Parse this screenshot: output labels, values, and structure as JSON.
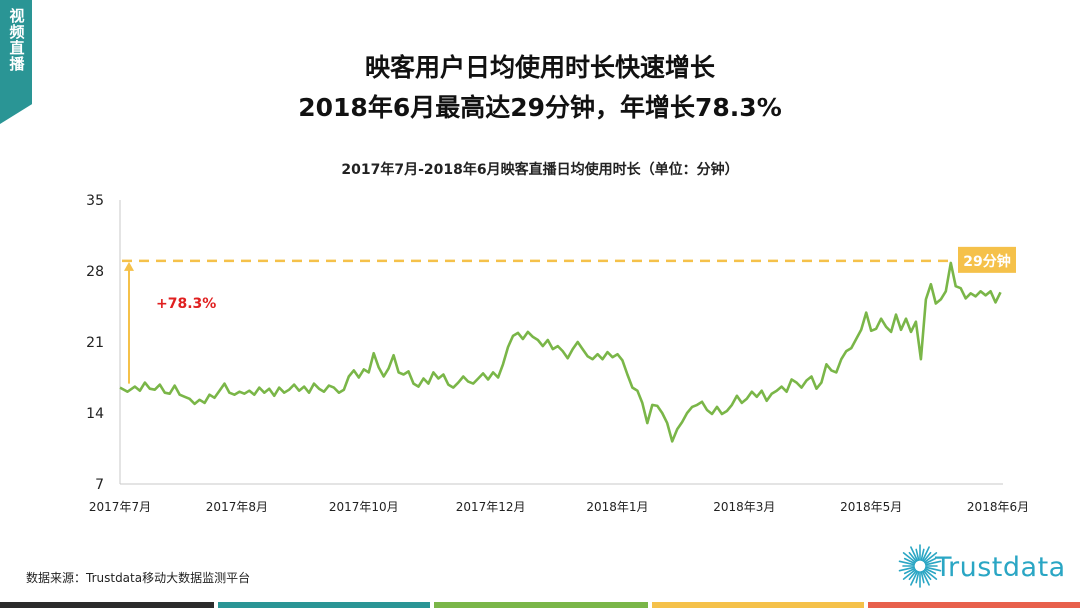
{
  "sidebar": {
    "label": "视频直播"
  },
  "header": {
    "title_line1": "映客用户日均使用时长快速增长",
    "title_line2": "2018年6月最高达29分钟，年增长78.3%"
  },
  "colors": {
    "line": "#7ab648",
    "annotation": "#f5c14a",
    "growth_text": "#e02020",
    "sidebar": "#2a9595",
    "logo": "#2aa6c4",
    "footer": [
      "#2b2b2b",
      "#2a9595",
      "#7ab648",
      "#f5c14a",
      "#e8604c"
    ]
  },
  "chart_data": {
    "type": "line",
    "title": "2017年7月-2018年6月映客直播日均使用时长（单位：分钟）",
    "yticks": [
      7,
      14,
      21,
      28,
      35
    ],
    "ylim": [
      7,
      35
    ],
    "xtick_labels": [
      "2017年7月",
      "2017年8月",
      "2017年10月",
      "2017年12月",
      "2018年1月",
      "2018年3月",
      "2018年5月",
      "2018年6月"
    ],
    "x_range_days": [
      0,
      355
    ],
    "xtick_days": [
      0,
      47,
      98,
      149,
      200,
      251,
      302,
      353
    ],
    "grid": false,
    "series": [
      {
        "points": [
          [
            0,
            16.5
          ],
          [
            3,
            16.1
          ],
          [
            6,
            16.6
          ],
          [
            8,
            16.2
          ],
          [
            10,
            17.0
          ],
          [
            12,
            16.4
          ],
          [
            14,
            16.3
          ],
          [
            16,
            16.8
          ],
          [
            18,
            16.0
          ],
          [
            20,
            15.9
          ],
          [
            22,
            16.7
          ],
          [
            24,
            15.8
          ],
          [
            26,
            15.6
          ],
          [
            28,
            15.4
          ],
          [
            30,
            14.9
          ],
          [
            32,
            15.3
          ],
          [
            34,
            15.0
          ],
          [
            36,
            15.8
          ],
          [
            38,
            15.5
          ],
          [
            40,
            16.2
          ],
          [
            42,
            16.9
          ],
          [
            44,
            16.0
          ],
          [
            46,
            15.8
          ],
          [
            48,
            16.1
          ],
          [
            50,
            15.9
          ],
          [
            52,
            16.2
          ],
          [
            54,
            15.8
          ],
          [
            56,
            16.5
          ],
          [
            58,
            16.0
          ],
          [
            60,
            16.4
          ],
          [
            62,
            15.7
          ],
          [
            64,
            16.5
          ],
          [
            66,
            16.0
          ],
          [
            68,
            16.3
          ],
          [
            70,
            16.8
          ],
          [
            72,
            16.2
          ],
          [
            74,
            16.6
          ],
          [
            76,
            16.0
          ],
          [
            78,
            16.9
          ],
          [
            80,
            16.4
          ],
          [
            82,
            16.1
          ],
          [
            84,
            16.7
          ],
          [
            86,
            16.5
          ],
          [
            88,
            16.0
          ],
          [
            90,
            16.3
          ],
          [
            92,
            17.6
          ],
          [
            94,
            18.2
          ],
          [
            96,
            17.5
          ],
          [
            98,
            18.3
          ],
          [
            100,
            18.0
          ],
          [
            102,
            19.9
          ],
          [
            104,
            18.5
          ],
          [
            106,
            17.6
          ],
          [
            108,
            18.4
          ],
          [
            110,
            19.7
          ],
          [
            112,
            18.0
          ],
          [
            114,
            17.8
          ],
          [
            116,
            18.1
          ],
          [
            118,
            16.9
          ],
          [
            120,
            16.6
          ],
          [
            122,
            17.4
          ],
          [
            124,
            16.9
          ],
          [
            126,
            18.0
          ],
          [
            128,
            17.4
          ],
          [
            130,
            17.8
          ],
          [
            132,
            16.8
          ],
          [
            134,
            16.5
          ],
          [
            136,
            17.0
          ],
          [
            138,
            17.6
          ],
          [
            140,
            17.1
          ],
          [
            142,
            16.9
          ],
          [
            144,
            17.4
          ],
          [
            146,
            17.9
          ],
          [
            148,
            17.3
          ],
          [
            150,
            18.0
          ],
          [
            152,
            17.5
          ],
          [
            154,
            18.8
          ],
          [
            156,
            20.5
          ],
          [
            158,
            21.6
          ],
          [
            160,
            21.9
          ],
          [
            162,
            21.3
          ],
          [
            164,
            22.0
          ],
          [
            166,
            21.5
          ],
          [
            168,
            21.2
          ],
          [
            170,
            20.6
          ],
          [
            172,
            21.2
          ],
          [
            174,
            20.3
          ],
          [
            176,
            20.6
          ],
          [
            178,
            20.1
          ],
          [
            180,
            19.4
          ],
          [
            182,
            20.3
          ],
          [
            184,
            21.0
          ],
          [
            186,
            20.3
          ],
          [
            188,
            19.6
          ],
          [
            190,
            19.3
          ],
          [
            192,
            19.8
          ],
          [
            194,
            19.3
          ],
          [
            196,
            20.0
          ],
          [
            198,
            19.5
          ],
          [
            200,
            19.8
          ],
          [
            202,
            19.2
          ],
          [
            204,
            17.8
          ],
          [
            206,
            16.5
          ],
          [
            208,
            16.2
          ],
          [
            210,
            15.0
          ],
          [
            212,
            13.0
          ],
          [
            214,
            14.8
          ],
          [
            216,
            14.7
          ],
          [
            218,
            14.0
          ],
          [
            220,
            13.0
          ],
          [
            222,
            11.2
          ],
          [
            224,
            12.4
          ],
          [
            226,
            13.1
          ],
          [
            228,
            14.0
          ],
          [
            230,
            14.6
          ],
          [
            232,
            14.8
          ],
          [
            234,
            15.1
          ],
          [
            236,
            14.3
          ],
          [
            238,
            13.9
          ],
          [
            240,
            14.6
          ],
          [
            242,
            13.9
          ],
          [
            244,
            14.2
          ],
          [
            246,
            14.8
          ],
          [
            248,
            15.7
          ],
          [
            250,
            15.0
          ],
          [
            252,
            15.4
          ],
          [
            254,
            16.1
          ],
          [
            256,
            15.6
          ],
          [
            258,
            16.2
          ],
          [
            260,
            15.2
          ],
          [
            262,
            15.9
          ],
          [
            264,
            16.2
          ],
          [
            266,
            16.6
          ],
          [
            268,
            16.1
          ],
          [
            270,
            17.3
          ],
          [
            272,
            17.0
          ],
          [
            274,
            16.5
          ],
          [
            276,
            17.2
          ],
          [
            278,
            17.6
          ],
          [
            280,
            16.4
          ],
          [
            282,
            17.0
          ],
          [
            284,
            18.8
          ],
          [
            286,
            18.2
          ],
          [
            288,
            18.0
          ],
          [
            290,
            19.3
          ],
          [
            292,
            20.1
          ],
          [
            294,
            20.4
          ],
          [
            296,
            21.3
          ],
          [
            298,
            22.2
          ],
          [
            300,
            23.9
          ],
          [
            302,
            22.1
          ],
          [
            304,
            22.3
          ],
          [
            306,
            23.3
          ],
          [
            308,
            22.5
          ],
          [
            310,
            22.0
          ],
          [
            312,
            23.7
          ],
          [
            314,
            22.2
          ],
          [
            316,
            23.3
          ],
          [
            318,
            22.0
          ],
          [
            320,
            23.0
          ],
          [
            322,
            19.3
          ],
          [
            324,
            25.2
          ],
          [
            326,
            26.7
          ],
          [
            328,
            24.8
          ],
          [
            330,
            25.2
          ],
          [
            332,
            26.0
          ],
          [
            334,
            28.8
          ],
          [
            336,
            26.5
          ],
          [
            338,
            26.3
          ],
          [
            340,
            25.3
          ],
          [
            342,
            25.8
          ],
          [
            344,
            25.5
          ],
          [
            346,
            26.0
          ],
          [
            348,
            25.6
          ],
          [
            350,
            26.0
          ],
          [
            352,
            24.9
          ],
          [
            354,
            25.9
          ]
        ]
      }
    ],
    "annotations": {
      "max_label": "29分钟",
      "max_value": 29,
      "growth_label": "+78.3%"
    }
  },
  "footer_note": {
    "source": "数据来源：Trustdata移动大数据监测平台",
    "logo_text": "Trustdata"
  }
}
